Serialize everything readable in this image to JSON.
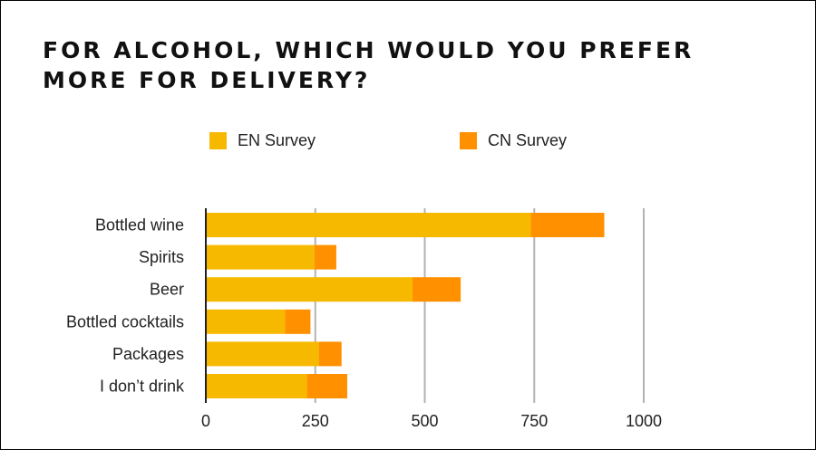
{
  "chart_data": {
    "type": "bar",
    "orientation": "horizontal",
    "stacked": true,
    "title": "FOR ALCOHOL, WHICH WOULD YOU PREFER MORE FOR DELIVERY?",
    "categories": [
      "Bottled wine",
      "Spirits",
      "Beer",
      "Bottled cocktails",
      "Packages",
      "I don’t drink"
    ],
    "series": [
      {
        "name": "EN Survey",
        "color": "#F7B900",
        "values": [
          742,
          248,
          472,
          181,
          258,
          231
        ]
      },
      {
        "name": "CN Survey",
        "color": "#FF9100",
        "values": [
          168,
          50,
          110,
          58,
          52,
          92
        ]
      }
    ],
    "xlim": [
      0,
      1000
    ],
    "xticks": [
      0,
      250,
      500,
      750,
      1000
    ],
    "xtick_labels": [
      "0",
      "250",
      "500",
      "750",
      "1000"
    ],
    "grid": true,
    "legend_position": "top"
  }
}
